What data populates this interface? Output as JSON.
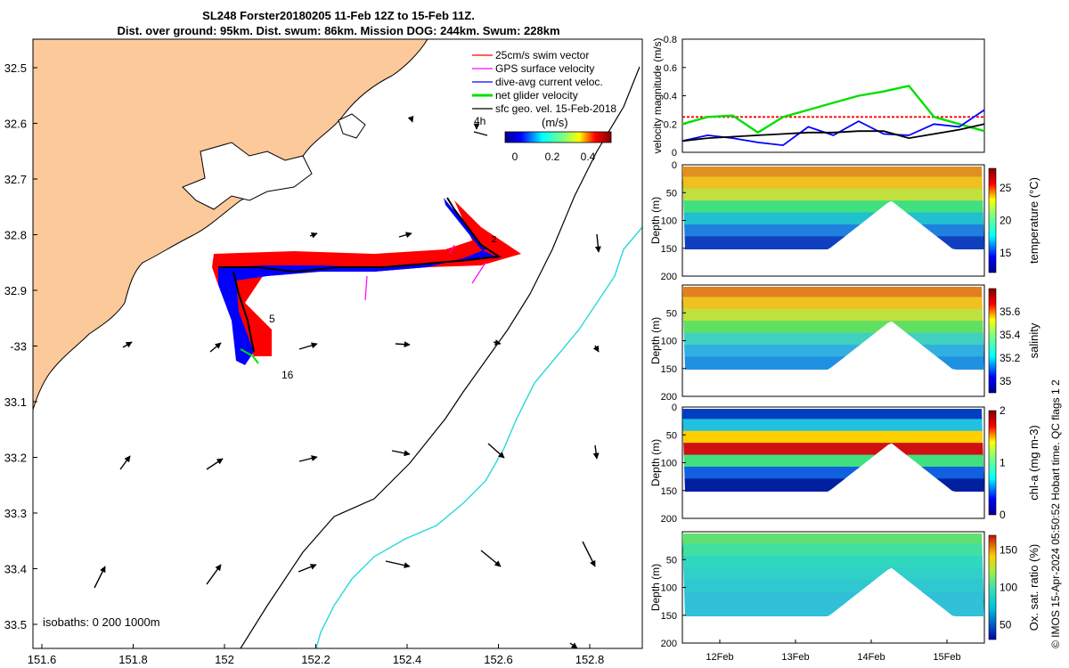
{
  "header": {
    "title_line1": "SL248 Forster20180205 11-Feb 12Z to 15-Feb 11Z.",
    "title_line2": "Dist. over ground: 95km. Dist. swum: 86km. Mission DOG: 244km. Swum: 228km"
  },
  "map": {
    "lat_ticks": [
      "32.5",
      "32.6",
      "32.7",
      "32.8",
      "32.9",
      "-33",
      "33.1",
      "33.2",
      "33.3",
      "33.4",
      "33.5"
    ],
    "lon_ticks": [
      "151.6",
      "151.8",
      "152",
      "152.2",
      "152.4",
      "152.6",
      "152.8"
    ],
    "legend": [
      {
        "label": "25cm/s swim vector",
        "color": "#ff0000"
      },
      {
        "label": "GPS surface velocity",
        "color": "#ff00ff"
      },
      {
        "label": "dive-avg current veloc.",
        "color": "#0000ff"
      },
      {
        "label": "net glider velocity",
        "color": "#00e000"
      },
      {
        "label": "sfc geo. vel. 15-Feb-2018",
        "color": "#000000"
      }
    ],
    "arrow_scale_label": "4h",
    "colorbar_unit": "(m/s)",
    "colorbar_ticks": [
      "0",
      "0.2",
      "0.4"
    ],
    "isobaths_label": "isobaths: 0   200  1000m",
    "day_labels": [
      "5",
      "16"
    ],
    "colors": {
      "land": "#fbc99a",
      "isobath_1000": "#000000",
      "isobath_200": "#29d8d8"
    }
  },
  "chart_data": [
    {
      "type": "line",
      "title": "velocity magnitude time series",
      "ylabel": "velocity magnitude (m/s)",
      "ylim": [
        0,
        0.8
      ],
      "y_ticks": [
        "0",
        "0.2",
        "0.4",
        "0.6",
        "0.8"
      ],
      "x_ticks": [
        "12Feb",
        "13Feb",
        "14Feb",
        "15Feb"
      ],
      "series": [
        {
          "name": "swim speed",
          "color": "#ff0000",
          "values": [
            0.25,
            0.25,
            0.25,
            0.25,
            0.25,
            0.25,
            0.25,
            0.25,
            0.25,
            0.25,
            0.25,
            0.25,
            0.25
          ]
        },
        {
          "name": "net glider velocity",
          "color": "#00e000",
          "values": [
            0.2,
            0.25,
            0.26,
            0.14,
            0.25,
            0.3,
            0.35,
            0.4,
            0.43,
            0.47,
            0.25,
            0.2,
            0.15
          ]
        },
        {
          "name": "dive-avg current",
          "color": "#0000ff",
          "values": [
            0.08,
            0.12,
            0.1,
            0.07,
            0.05,
            0.18,
            0.12,
            0.22,
            0.13,
            0.12,
            0.2,
            0.18,
            0.3
          ]
        },
        {
          "name": "sfc geo. vel.",
          "color": "#000000",
          "values": [
            0.08,
            0.1,
            0.11,
            0.12,
            0.13,
            0.14,
            0.14,
            0.15,
            0.15,
            0.1,
            0.13,
            0.16,
            0.2
          ]
        }
      ]
    },
    {
      "type": "heatmap",
      "variable": "temperature",
      "ylabel": "Depth (m)",
      "clabel": "temperature (°C)",
      "y_ticks": [
        "0",
        "50",
        "100",
        "150",
        "200"
      ],
      "c_ticks": [
        "25",
        "20",
        "15"
      ],
      "crange": [
        12,
        28
      ]
    },
    {
      "type": "heatmap",
      "variable": "salinity",
      "ylabel": "Depth (m)",
      "clabel": "salinity",
      "y_ticks": [
        "50",
        "100",
        "150",
        "200"
      ],
      "c_ticks": [
        "35.6",
        "35.4",
        "35.2",
        "35"
      ],
      "crange": [
        34.9,
        35.8
      ]
    },
    {
      "type": "heatmap",
      "variable": "chl-a",
      "ylabel": "Depth (m)",
      "clabel": "chl-a (mg m-3)",
      "y_ticks": [
        "0",
        "50",
        "100",
        "150",
        "200"
      ],
      "c_ticks": [
        "2",
        "1",
        "0"
      ],
      "crange": [
        0,
        2
      ]
    },
    {
      "type": "heatmap",
      "variable": "oxygen saturation",
      "ylabel": "Depth (m)",
      "clabel": "Ox. sat. ratio (%)",
      "y_ticks": [
        "50",
        "100",
        "150",
        "200"
      ],
      "c_ticks": [
        "150",
        "100",
        "50"
      ],
      "crange": [
        30,
        170
      ]
    }
  ],
  "footer": {
    "credit": "© IMOS 15-Apr-2024 05:50:52 Hobart time. QC flags 1  2"
  }
}
